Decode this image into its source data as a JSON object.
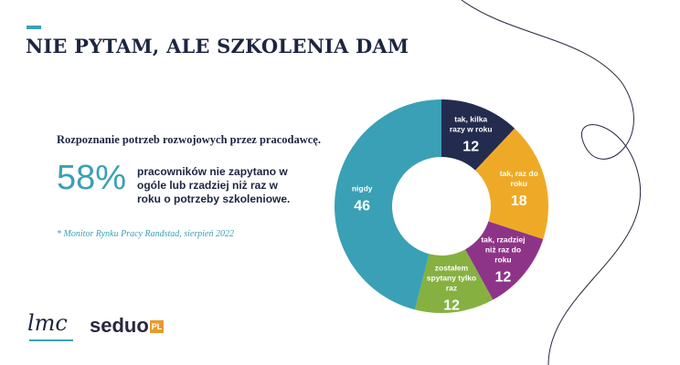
{
  "title": "NIE PYTAM, ALE SZKOLENIA DAM",
  "subtitle": "Rozpoznanie potrzeb rozwojowych przez pracodawcę.",
  "highlight": {
    "value": "58%",
    "text": "pracowników nie zapytano w ogóle lub rzadziej niż raz w roku o potrzeby szkoleniowe."
  },
  "source": "* Monitor Rynku Pracy Randstad, sierpień 2022",
  "logos": {
    "lmc": "lmc",
    "seduo": "seduo",
    "seduo_pl": "PL"
  },
  "chart_data": {
    "type": "pie",
    "donut": true,
    "categories": [
      "tak, kilka razy w roku",
      "tak, raz do roku",
      "tak, rzadziej niż raz do roku",
      "zostałem spytany tylko raz",
      "nigdy"
    ],
    "values": [
      12,
      18,
      12,
      12,
      46
    ],
    "colors": [
      "#232c4f",
      "#eeaa27",
      "#8e3488",
      "#86b141",
      "#3aa0b5"
    ]
  }
}
